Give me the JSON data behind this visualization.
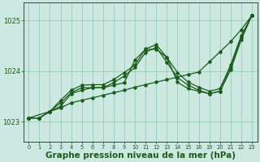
{
  "bg_color": "#cce8e0",
  "grid_color": "#99ccbb",
  "line_color": "#1a5c1a",
  "marker_color": "#1a5c1a",
  "xlabel": "Graphe pression niveau de la mer (hPa)",
  "xlabel_fontsize": 7.5,
  "ylim": [
    1022.6,
    1025.35
  ],
  "yticks": [
    1023,
    1024,
    1025
  ],
  "xtick_labels": [
    "0",
    "1",
    "2",
    "3",
    "4",
    "5",
    "6",
    "7",
    "8",
    "9",
    "10",
    "11",
    "12",
    "13",
    "14",
    "15",
    "16",
    "19",
    "20",
    "21",
    "22",
    "23"
  ],
  "xtick_pos": [
    0,
    1,
    2,
    3,
    4,
    5,
    6,
    7,
    8,
    9,
    10,
    11,
    12,
    13,
    14,
    15,
    16,
    17,
    18,
    19,
    20,
    21
  ],
  "xlim": [
    -0.5,
    21.5
  ],
  "series1_x": [
    0,
    1,
    2,
    3,
    4,
    5,
    6,
    7,
    8,
    9,
    10,
    11,
    12,
    13,
    14,
    15,
    16,
    17,
    18,
    19,
    20,
    21
  ],
  "series1_y": [
    1023.07,
    1023.07,
    1023.2,
    1023.27,
    1023.37,
    1023.42,
    1023.47,
    1023.52,
    1023.57,
    1023.62,
    1023.68,
    1023.73,
    1023.78,
    1023.83,
    1023.88,
    1023.93,
    1023.98,
    1024.18,
    1024.38,
    1024.58,
    1024.82,
    1025.1
  ],
  "series2_x": [
    0,
    1,
    2,
    3,
    4,
    5,
    6,
    7,
    8,
    9,
    10,
    11,
    12,
    13,
    14,
    15,
    16,
    17,
    18,
    19,
    20,
    21
  ],
  "series2_y": [
    1023.07,
    1023.07,
    1023.2,
    1023.3,
    1023.55,
    1023.62,
    1023.67,
    1023.67,
    1023.72,
    1023.77,
    1024.22,
    1024.43,
    1024.43,
    1024.27,
    1023.78,
    1023.65,
    1023.6,
    1023.55,
    1023.6,
    1024.02,
    1024.62,
    1025.1
  ],
  "series3_x": [
    0,
    1,
    2,
    3,
    4,
    5,
    6,
    7,
    8,
    9,
    10,
    11,
    12,
    13,
    14,
    15,
    16,
    17,
    18,
    19,
    20,
    21
  ],
  "series3_y": [
    1023.07,
    1023.07,
    1023.2,
    1023.37,
    1023.57,
    1023.67,
    1023.67,
    1023.67,
    1023.77,
    1023.9,
    1024.07,
    1024.37,
    1024.47,
    1024.17,
    1023.87,
    1023.72,
    1023.62,
    1023.55,
    1023.6,
    1024.07,
    1024.67,
    1025.1
  ],
  "series4_x": [
    0,
    2,
    3,
    4,
    5,
    6,
    7,
    8,
    9,
    10,
    11,
    12,
    13,
    14,
    15,
    16,
    17,
    18,
    19,
    20,
    21
  ],
  "series4_y": [
    1023.07,
    1023.2,
    1023.42,
    1023.62,
    1023.72,
    1023.73,
    1023.73,
    1023.83,
    1023.97,
    1024.12,
    1024.44,
    1024.52,
    1024.27,
    1023.97,
    1023.78,
    1023.68,
    1023.6,
    1023.65,
    1024.12,
    1024.7,
    1025.1
  ]
}
